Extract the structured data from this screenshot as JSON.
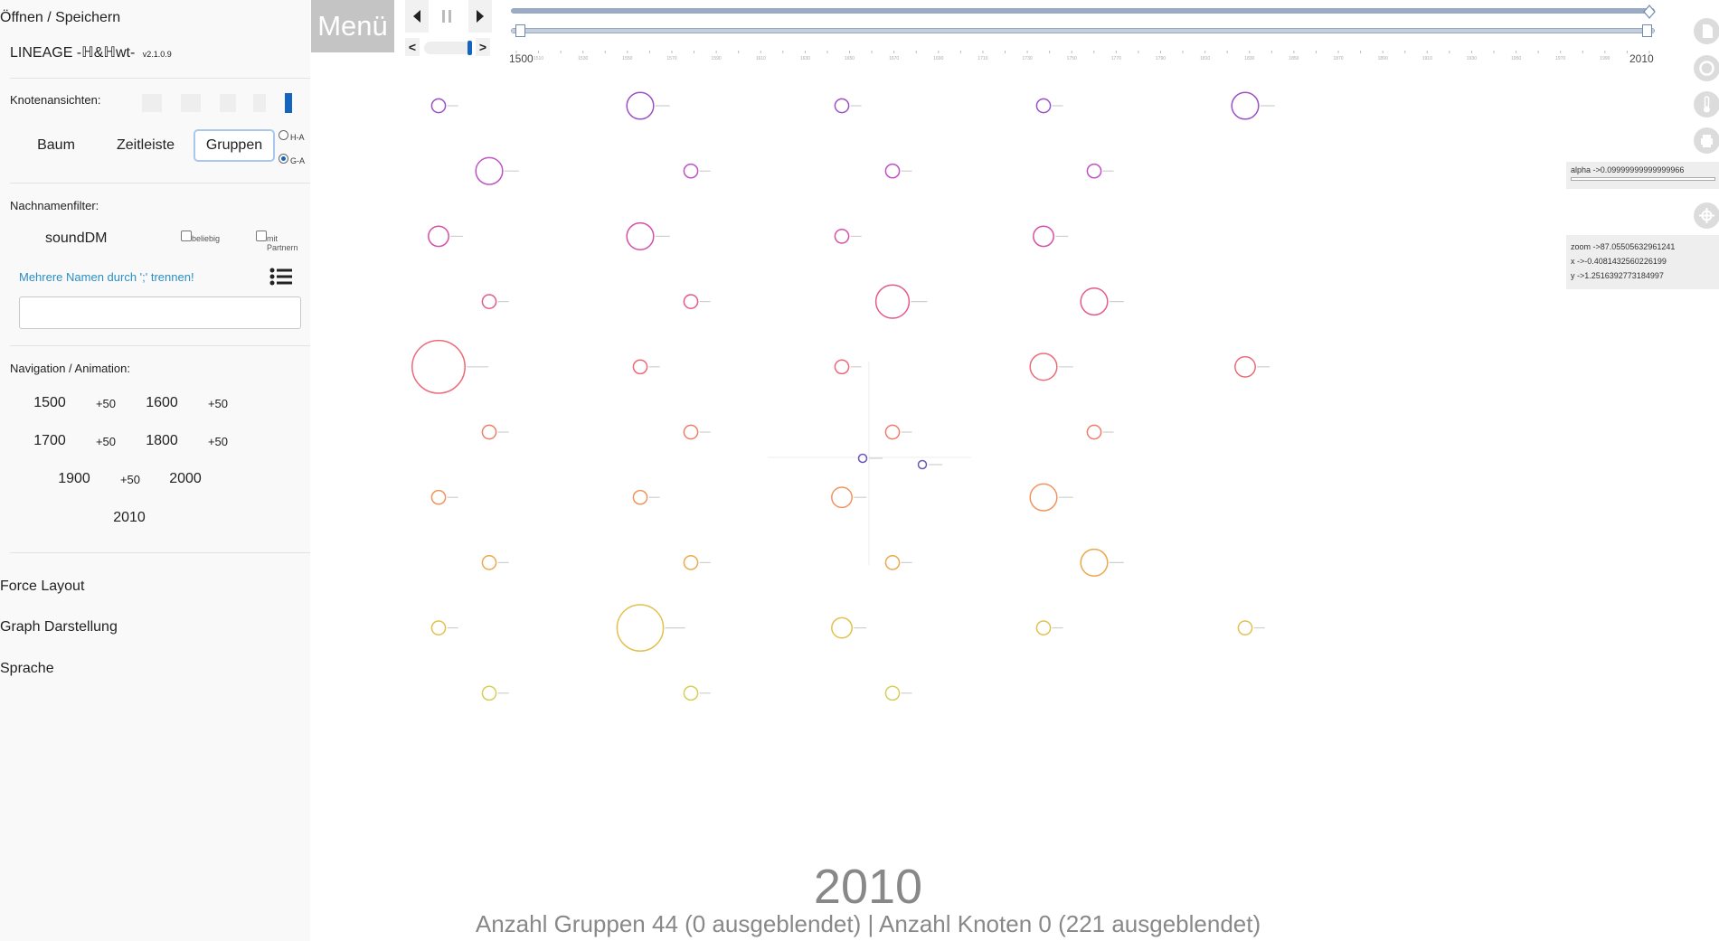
{
  "sidebar": {
    "open_save": "Öffnen / Speichern",
    "app_name": "LINEAGE -ℍ&ℍwt-",
    "version": "v2.1.0.9",
    "node_views_label": "Knotenansichten:",
    "modes": [
      "Baum",
      "Zeitleiste",
      "Gruppen"
    ],
    "active_mode": "Gruppen",
    "radio_ha": "H-A",
    "radio_ga": "G-A",
    "radio_selected": "G-A",
    "surname_filter_label": "Nachnamenfilter:",
    "filter_mode": "soundDM",
    "cb_any": "beliebig",
    "cb_partner": "mit Partnern",
    "multi_names_hint": "Mehrere Namen durch ';' trennen!",
    "names_input_value": "",
    "nav_label": "Navigation / Animation:",
    "nav_rows": [
      [
        "1500",
        "+50",
        "1600",
        "+50"
      ],
      [
        "1700",
        "+50",
        "1800",
        "+50"
      ],
      [
        "1900",
        "+50",
        "2000"
      ],
      [
        "2010"
      ]
    ],
    "force_layout": "Force Layout",
    "graph_display": "Graph Darstellung",
    "language": "Sprache"
  },
  "toolbar": {
    "menu_label": "Menü",
    "prev_icon": "triangle-left-icon",
    "pause_icon": "pause-icon",
    "next_icon": "triangle-right-icon",
    "speed_down": "<",
    "speed_up": ">",
    "speed_level": 0.95
  },
  "timeline": {
    "start_year": "1500",
    "end_year": "2010",
    "range_min": 1500,
    "range_max": 2010,
    "tick_step": 10
  },
  "right_panel": {
    "alpha": "alpha ->0.09999999999999966",
    "zoom": "zoom ->87.05505632961241",
    "x": "x ->-0.4081432560226199",
    "y": "y ->1.2516392773184997",
    "icons": [
      "document-icon",
      "stop-icon",
      "thermometer-icon",
      "printer-icon",
      "crosshair-icon"
    ]
  },
  "groups_grid": {
    "colors": [
      "#9b4fc4",
      "#c050c4",
      "#d64fa6",
      "#e4598d",
      "#ec6a78",
      "#ef7c6a",
      "#f0945d",
      "#eaa94c",
      "#e1c04b",
      "#d6cf56"
    ],
    "cells": [
      [
        1,
        3,
        1,
        1,
        3
      ],
      [
        3,
        1,
        1,
        1
      ],
      [
        2,
        3,
        1,
        2
      ],
      [
        1,
        1,
        4,
        3
      ],
      [
        7,
        1,
        1,
        3,
        2
      ],
      [
        1,
        1,
        1,
        1
      ],
      [
        1,
        1,
        2,
        3
      ],
      [
        1,
        1,
        1,
        3
      ],
      [
        1,
        6,
        2,
        1,
        1
      ],
      [
        1,
        1,
        1
      ]
    ],
    "center_nodes": 2
  },
  "footer": {
    "year": "2010",
    "status": "Anzahl Gruppen 44 (0 ausgeblendet) | Anzahl Knoten 0 (221 ausgeblendet)"
  }
}
